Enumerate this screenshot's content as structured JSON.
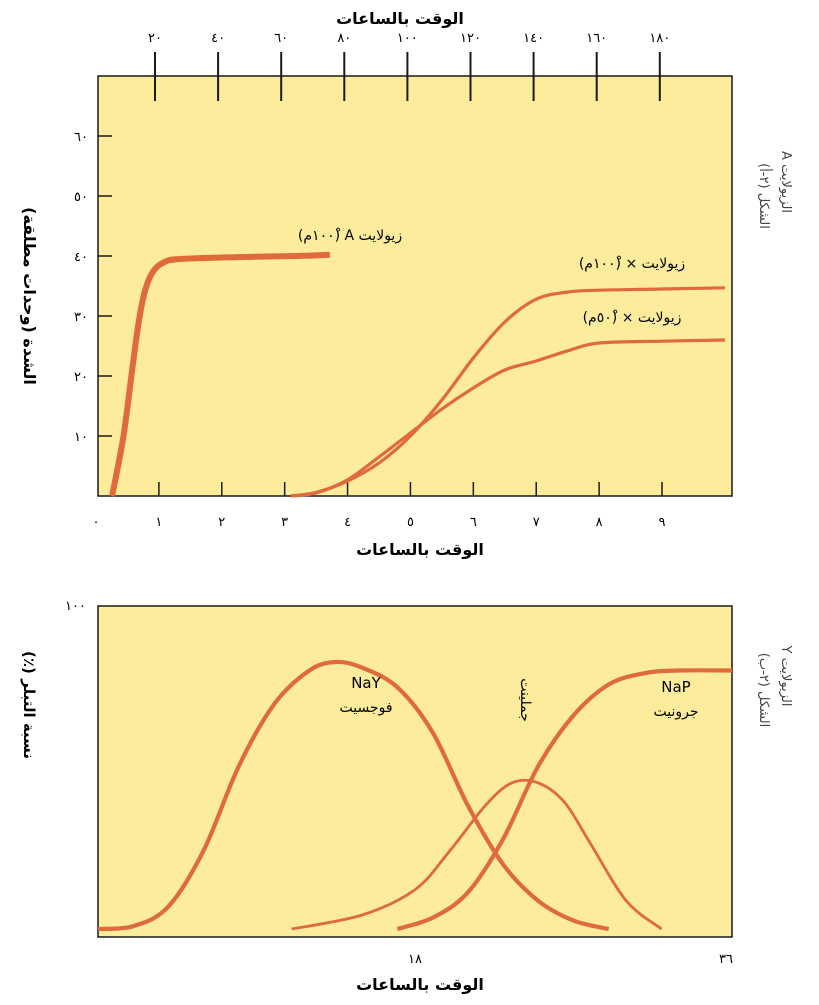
{
  "colors": {
    "panel": "#fcec9c",
    "curve": "#e06a3a",
    "axis": "#1a1a1a"
  },
  "chart_data": [
    {
      "type": "line",
      "top_axis": {
        "label": "الوقت بالساعات",
        "ticks": [
          20,
          40,
          60,
          80,
          100,
          120,
          140,
          160,
          180
        ],
        "tick_labels": [
          "٢٠",
          "٤٠",
          "٦٠",
          "٨٠",
          "١٠٠",
          "١٢٠",
          "١٤٠",
          "١٦٠",
          "١٨٠"
        ]
      },
      "bottom_axis": {
        "label": "الوقت بالساعات",
        "ticks": [
          0,
          1,
          2,
          3,
          4,
          5,
          6,
          7,
          8,
          9
        ],
        "tick_labels": [
          "٠",
          "١",
          "٢",
          "٣",
          "٤",
          "٥",
          "٦",
          "٧",
          "٨",
          "٩"
        ],
        "xlim": [
          0,
          10
        ]
      },
      "ylabel": "الشدة (وحدات مطلقة)",
      "y_ticks": [
        10,
        20,
        30,
        40,
        50,
        60
      ],
      "y_tick_labels": [
        "١٠",
        "٢٠",
        "٣٠",
        "٤٠",
        "٥٠",
        "٦٠"
      ],
      "ylim": [
        0,
        70
      ],
      "side_caption": [
        "الشكل (٢-أ)",
        "الزيولايت A"
      ],
      "series": [
        {
          "name": "زيولايت A (١٠٠ْم)",
          "axis": "top",
          "thick": true,
          "points": [
            [
              6.4,
              0
            ],
            [
              10,
              10
            ],
            [
              13,
              22
            ],
            [
              15,
              29.5
            ],
            [
              17,
              34.5
            ],
            [
              19.5,
              37.5
            ],
            [
              23,
              39
            ],
            [
              28,
              39.5
            ],
            [
              45,
              39.8
            ],
            [
              65,
              40
            ],
            [
              75.4,
              40.2
            ]
          ]
        },
        {
          "name": "زيولايت × (١٠٠ْم)",
          "axis": "bottom",
          "thick": false,
          "points": [
            [
              3.1,
              0
            ],
            [
              3.5,
              0.6
            ],
            [
              4,
              2.5
            ],
            [
              4.5,
              5.5
            ],
            [
              5,
              10
            ],
            [
              5.5,
              16
            ],
            [
              6,
              23
            ],
            [
              6.5,
              29
            ],
            [
              7,
              32.8
            ],
            [
              7.5,
              34
            ],
            [
              8,
              34.3
            ],
            [
              9,
              34.5
            ],
            [
              10,
              34.7
            ]
          ]
        },
        {
          "name": "زيولايت × (٥٠ْم)",
          "axis": "bottom",
          "thick": false,
          "points": [
            [
              3.1,
              0
            ],
            [
              3.5,
              0.5
            ],
            [
              4,
              2.7
            ],
            [
              4.5,
              6.5
            ],
            [
              5,
              10.5
            ],
            [
              5.5,
              14.5
            ],
            [
              6,
              18
            ],
            [
              6.5,
              21
            ],
            [
              7,
              22.5
            ],
            [
              7.5,
              24.2
            ],
            [
              8,
              25.5
            ],
            [
              9,
              25.8
            ],
            [
              10,
              26
            ]
          ]
        }
      ]
    },
    {
      "type": "line",
      "xlabel": "الوقت بالساعات",
      "x_ticks": [
        18,
        36
      ],
      "x_tick_labels": [
        "١٨",
        "٣٦"
      ],
      "xlim": [
        0,
        36
      ],
      "ylabel": "نسبة التبلر (٪)",
      "y_ticks": [
        100
      ],
      "y_tick_labels": [
        "١٠٠"
      ],
      "ylim": [
        0,
        100
      ],
      "side_caption": [
        "الشكل (٢-ب)",
        "الزيولايت Y"
      ],
      "series": [
        {
          "name": "NaY فوجسيت",
          "thick": true,
          "points": [
            [
              0,
              0
            ],
            [
              2,
              1
            ],
            [
              4,
              8
            ],
            [
              6,
              28
            ],
            [
              8,
              58
            ],
            [
              10,
              80
            ],
            [
              12,
              92
            ],
            [
              13.5,
              95
            ],
            [
              15,
              93
            ],
            [
              17,
              86
            ],
            [
              19,
              70
            ],
            [
              21,
              44
            ],
            [
              23,
              23
            ],
            [
              25,
              10
            ],
            [
              27,
              3
            ],
            [
              29,
              0
            ]
          ]
        },
        {
          "name": "جملينت",
          "thick": false,
          "points": [
            [
              11,
              0
            ],
            [
              15,
              5
            ],
            [
              18,
              14
            ],
            [
              20,
              28
            ],
            [
              22,
              44
            ],
            [
              23.5,
              52
            ],
            [
              25,
              52
            ],
            [
              26.5,
              45
            ],
            [
              28,
              30
            ],
            [
              30,
              10
            ],
            [
              32,
              0
            ]
          ]
        },
        {
          "name": "NaP جرونيت",
          "thick": true,
          "points": [
            [
              17,
              0
            ],
            [
              19,
              4
            ],
            [
              21,
              13
            ],
            [
              23,
              32
            ],
            [
              25,
              58
            ],
            [
              27,
              76
            ],
            [
              29,
              87
            ],
            [
              31,
              91
            ],
            [
              33,
              92
            ],
            [
              36,
              92
            ]
          ]
        }
      ],
      "annotations": [
        {
          "lines": [
            "NaY",
            "فوجسيت"
          ],
          "series": 0
        },
        {
          "lines": [
            "جملينت"
          ],
          "series": 1
        },
        {
          "lines": [
            "NaP",
            "جرونيت"
          ],
          "series": 2
        }
      ]
    }
  ]
}
